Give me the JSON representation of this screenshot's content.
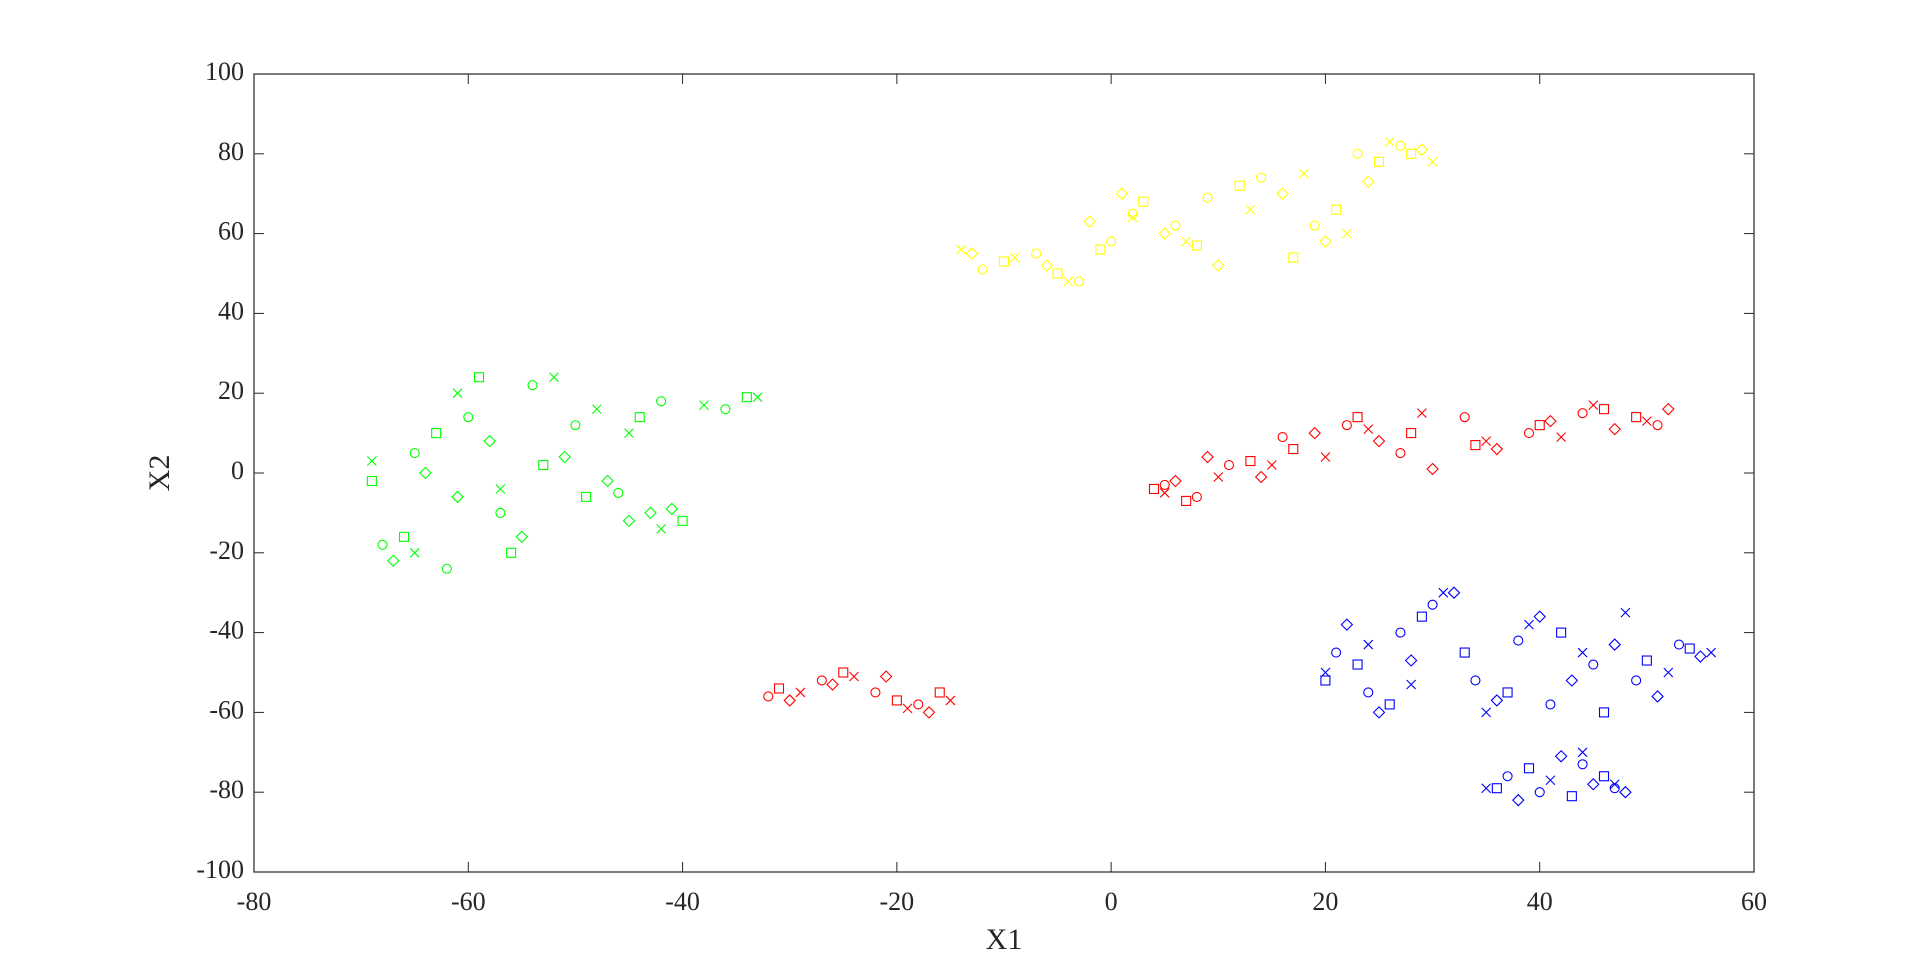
{
  "chart_data": {
    "type": "scatter",
    "xlabel": "X1",
    "ylabel": "X2",
    "xlim": [
      -80,
      60
    ],
    "xticks": [
      -80,
      -60,
      -40,
      -20,
      0,
      20,
      40,
      60
    ],
    "ylim": [
      -100,
      100
    ],
    "yticks": [
      -100,
      -80,
      -60,
      -40,
      -20,
      0,
      20,
      40,
      60,
      80,
      100
    ],
    "series": [
      {
        "color": "#ffff00",
        "marker": "o",
        "x": [
          -12,
          -7,
          -3,
          0,
          2,
          6,
          9,
          14,
          19,
          23,
          27
        ],
        "values": [
          51,
          55,
          48,
          58,
          65,
          62,
          69,
          74,
          62,
          80,
          82
        ]
      },
      {
        "color": "#ffff00",
        "marker": "s",
        "x": [
          -10,
          -5,
          -1,
          3,
          8,
          12,
          17,
          21,
          25,
          28
        ],
        "values": [
          53,
          50,
          56,
          68,
          57,
          72,
          54,
          66,
          78,
          80
        ]
      },
      {
        "color": "#ffff00",
        "marker": "d",
        "x": [
          -13,
          -6,
          -2,
          1,
          5,
          10,
          16,
          20,
          24,
          29
        ],
        "values": [
          55,
          52,
          63,
          70,
          60,
          52,
          70,
          58,
          73,
          81
        ]
      },
      {
        "color": "#ffff00",
        "marker": "x",
        "x": [
          -14,
          -9,
          -4,
          2,
          7,
          13,
          18,
          22,
          26,
          30
        ],
        "values": [
          56,
          54,
          48,
          64,
          58,
          66,
          75,
          60,
          83,
          78
        ]
      },
      {
        "color": "#00ff00",
        "marker": "o",
        "x": [
          -68,
          -65,
          -62,
          -60,
          -57,
          -54,
          -50,
          -46,
          -42,
          -36
        ],
        "values": [
          -18,
          5,
          -24,
          14,
          -10,
          22,
          12,
          -5,
          18,
          16
        ]
      },
      {
        "color": "#00ff00",
        "marker": "s",
        "x": [
          -69,
          -66,
          -63,
          -59,
          -56,
          -53,
          -49,
          -44,
          -40,
          -34
        ],
        "values": [
          -2,
          -16,
          10,
          24,
          -20,
          2,
          -6,
          14,
          -12,
          19
        ]
      },
      {
        "color": "#00ff00",
        "marker": "d",
        "x": [
          -67,
          -64,
          -61,
          -58,
          -55,
          -51,
          -47,
          -45,
          -43,
          -41
        ],
        "values": [
          -22,
          0,
          -6,
          8,
          -16,
          4,
          -2,
          -12,
          -10,
          -9
        ]
      },
      {
        "color": "#00ff00",
        "marker": "x",
        "x": [
          -69,
          -65,
          -61,
          -57,
          -52,
          -48,
          -45,
          -42,
          -38,
          -33
        ],
        "values": [
          3,
          -20,
          20,
          -4,
          24,
          16,
          10,
          -14,
          17,
          19
        ]
      },
      {
        "color": "#ff0000",
        "marker": "o",
        "x": [
          5,
          8,
          11,
          16,
          22,
          27,
          33,
          39,
          44,
          51,
          -32,
          -27,
          -22,
          -18
        ],
        "values": [
          -3,
          -6,
          2,
          9,
          12,
          5,
          14,
          10,
          15,
          12,
          -56,
          -52,
          -55,
          -58
        ]
      },
      {
        "color": "#ff0000",
        "marker": "s",
        "x": [
          4,
          7,
          13,
          17,
          23,
          28,
          34,
          40,
          46,
          49,
          -31,
          -25,
          -20,
          -16
        ],
        "values": [
          -4,
          -7,
          3,
          6,
          14,
          10,
          7,
          12,
          16,
          14,
          -54,
          -50,
          -57,
          -55
        ]
      },
      {
        "color": "#ff0000",
        "marker": "d",
        "x": [
          6,
          9,
          14,
          19,
          25,
          30,
          36,
          41,
          47,
          52,
          -30,
          -26,
          -21,
          -17
        ],
        "values": [
          -2,
          4,
          -1,
          10,
          8,
          1,
          6,
          13,
          11,
          16,
          -57,
          -53,
          -51,
          -60
        ]
      },
      {
        "color": "#ff0000",
        "marker": "x",
        "x": [
          5,
          10,
          15,
          20,
          24,
          29,
          35,
          42,
          45,
          50,
          -29,
          -24,
          -19,
          -15
        ],
        "values": [
          -5,
          -1,
          2,
          4,
          11,
          15,
          8,
          9,
          17,
          13,
          -55,
          -51,
          -59,
          -57
        ]
      },
      {
        "color": "#0000ff",
        "marker": "o",
        "x": [
          21,
          24,
          27,
          30,
          34,
          38,
          41,
          45,
          49,
          53,
          37,
          40,
          44,
          47
        ],
        "values": [
          -45,
          -55,
          -40,
          -33,
          -52,
          -42,
          -58,
          -48,
          -52,
          -43,
          -76,
          -80,
          -73,
          -79
        ]
      },
      {
        "color": "#0000ff",
        "marker": "s",
        "x": [
          20,
          23,
          26,
          29,
          33,
          37,
          42,
          46,
          50,
          54,
          36,
          39,
          43,
          46
        ],
        "values": [
          -52,
          -48,
          -58,
          -36,
          -45,
          -55,
          -40,
          -60,
          -47,
          -44,
          -79,
          -74,
          -81,
          -76
        ]
      },
      {
        "color": "#0000ff",
        "marker": "d",
        "x": [
          22,
          25,
          28,
          32,
          36,
          40,
          43,
          47,
          51,
          55,
          38,
          42,
          45,
          48
        ],
        "values": [
          -38,
          -60,
          -47,
          -30,
          -57,
          -36,
          -52,
          -43,
          -56,
          -46,
          -82,
          -71,
          -78,
          -80
        ]
      },
      {
        "color": "#0000ff",
        "marker": "x",
        "x": [
          20,
          24,
          28,
          31,
          35,
          39,
          44,
          48,
          52,
          56,
          35,
          41,
          44,
          47
        ],
        "values": [
          -50,
          -43,
          -53,
          -30,
          -60,
          -38,
          -45,
          -35,
          -50,
          -45,
          -79,
          -77,
          -70,
          -78
        ]
      }
    ]
  }
}
